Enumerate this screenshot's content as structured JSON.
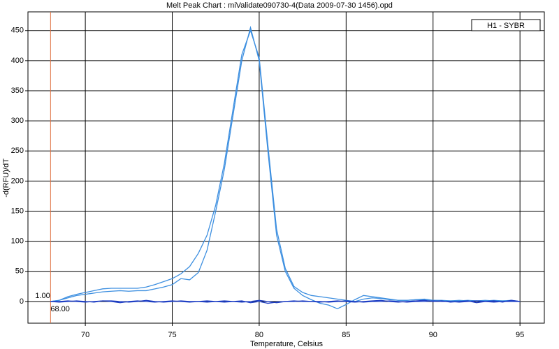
{
  "chart_data": {
    "type": "line",
    "title": "Melt Peak Chart : miValidate090730-4(Data 2009-07-30 1456).opd",
    "x_label": "Temperature, Celsius",
    "y_label": "-d(RFU)/dT",
    "x": [
      68,
      68.5,
      69,
      69.5,
      70,
      70.5,
      71,
      71.5,
      72,
      72.5,
      73,
      73.5,
      74,
      74.5,
      75,
      75.5,
      76,
      76.5,
      77,
      77.5,
      78,
      78.5,
      79,
      79.5,
      80,
      80.5,
      81,
      81.5,
      82,
      82.5,
      83,
      83.5,
      84,
      84.5,
      85,
      85.5,
      86,
      86.5,
      87,
      87.5,
      88,
      88.5,
      89,
      89.5,
      90,
      90.5,
      91,
      91.5,
      92,
      92.5,
      93,
      93.5,
      94,
      94.5,
      95
    ],
    "series": [
      {
        "color": "#3d8fe0",
        "values": [
          0,
          2,
          8,
          12,
          15,
          18,
          21,
          22,
          22,
          22,
          22,
          24,
          28,
          33,
          38,
          46,
          58,
          80,
          110,
          160,
          230,
          320,
          410,
          450,
          405,
          260,
          120,
          55,
          25,
          15,
          10,
          8,
          6,
          4,
          2,
          0,
          4,
          6,
          5,
          3,
          2,
          2,
          3,
          3,
          2,
          2,
          1,
          1,
          2,
          1,
          1,
          2,
          1,
          1,
          0
        ]
      },
      {
        "color": "#3d8fe0",
        "values": [
          0,
          2,
          6,
          10,
          12,
          14,
          16,
          17,
          18,
          17,
          18,
          18,
          21,
          24,
          28,
          38,
          36,
          48,
          85,
          150,
          220,
          310,
          400,
          455,
          400,
          250,
          110,
          50,
          22,
          10,
          3,
          -3,
          -6,
          -12,
          -5,
          3,
          10,
          8,
          6,
          4,
          2,
          2,
          3,
          4,
          2,
          1,
          1,
          2,
          1,
          1,
          2,
          1,
          1,
          2,
          0
        ]
      },
      {
        "color": "#1f3fc4",
        "values": [
          0,
          -1,
          0,
          1,
          0,
          -1,
          1,
          0,
          -2,
          0,
          1,
          0,
          -1,
          0,
          1,
          0,
          -1,
          0,
          1,
          0,
          -1,
          0,
          1,
          -2,
          0,
          -3,
          -1,
          0,
          1,
          0,
          0,
          -1,
          0,
          1,
          0,
          -1,
          0,
          1,
          2,
          0,
          -1,
          0,
          1,
          2,
          0,
          1,
          -1,
          0,
          1,
          -2,
          0,
          1,
          -1,
          2,
          0
        ]
      },
      {
        "color": "#1f3fc4",
        "values": [
          0,
          0,
          1,
          0,
          -1,
          0,
          1,
          1,
          0,
          -1,
          0,
          2,
          0,
          -1,
          0,
          1,
          0,
          0,
          -1,
          0,
          1,
          0,
          -1,
          0,
          2,
          0,
          -2,
          0,
          0,
          1,
          0,
          0,
          -1,
          0,
          1,
          0,
          -1,
          0,
          0,
          1,
          0,
          -1,
          0,
          0,
          1,
          0,
          0,
          -1,
          0,
          1,
          0,
          -1,
          0,
          0,
          0
        ]
      }
    ],
    "xlim": [
      66.7,
      96.4
    ],
    "ylim": [
      -36,
      481
    ],
    "xticks": [
      70,
      75,
      80,
      85,
      90,
      95
    ],
    "yticks": [
      0,
      50,
      100,
      150,
      200,
      250,
      300,
      350,
      400,
      450
    ],
    "grid": true,
    "marker_x": {
      "value": 68,
      "label": "68.00"
    },
    "marker_y": {
      "value": 1,
      "label": "1.00"
    },
    "marker_color": "#e07040",
    "legend": {
      "label": "H1 - SYBR",
      "corner": "top-right"
    }
  }
}
